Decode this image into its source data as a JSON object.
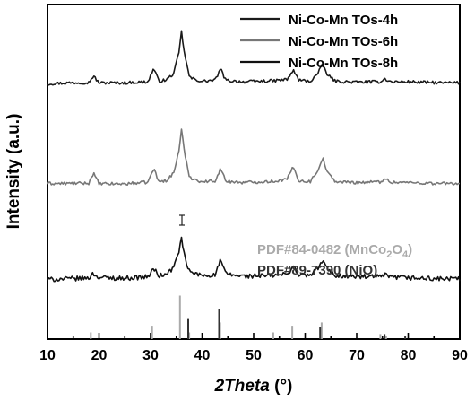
{
  "chart_data": {
    "type": "line",
    "xlabel_italic": "2Theta",
    "xlabel_unit": "(°)",
    "ylabel": "Intensity (a.u.)",
    "xlim": [
      10,
      90
    ],
    "ylim": [
      0,
      100
    ],
    "xticks": [
      10,
      20,
      30,
      40,
      50,
      60,
      70,
      80,
      90
    ],
    "grid": false,
    "legend_position": "top-right",
    "series": [
      {
        "name": "Ni-Co-Mn TOs-4h",
        "color": "#1a1a1a",
        "x": [
          10,
          14,
          18.0,
          18.9,
          20,
          25,
          29.5,
          30.6,
          31.6,
          33,
          34.5,
          35.5,
          36.0,
          36.7,
          37.6,
          40,
          42.5,
          43.6,
          44.6,
          48,
          54,
          56.5,
          57.7,
          58.8,
          61,
          62.4,
          63.4,
          64.4,
          66,
          70,
          74.5,
          75.5,
          76.5,
          80,
          86,
          90
        ],
        "y": [
          76.3,
          76.6,
          76.7,
          78.6,
          76.6,
          76.6,
          76.9,
          80.9,
          77.1,
          77.4,
          79.4,
          85.6,
          91.8,
          84.2,
          78.1,
          77.0,
          77.4,
          80.7,
          77.3,
          76.9,
          77.2,
          77.6,
          80.3,
          77.4,
          77.0,
          79.3,
          82.0,
          78.8,
          77.0,
          76.8,
          76.9,
          77.8,
          76.9,
          76.9,
          76.6,
          76.6
        ]
      },
      {
        "name": "Ni-Co-Mn TOs-6h",
        "color": "#777777",
        "x": [
          10,
          14,
          18.0,
          18.9,
          20,
          25,
          29.5,
          30.6,
          31.6,
          33,
          34.5,
          35.5,
          36.0,
          36.7,
          37.6,
          40,
          42.5,
          43.6,
          44.6,
          48,
          54,
          56.5,
          57.7,
          58.8,
          61,
          62.4,
          63.4,
          64.4,
          66,
          70,
          74.5,
          75.5,
          76.5,
          80,
          86,
          90
        ],
        "y": [
          46.5,
          46.5,
          46.6,
          49.6,
          46.4,
          46.4,
          46.9,
          51.0,
          47.0,
          47.4,
          49.6,
          56.4,
          62.8,
          54.4,
          48.3,
          47.0,
          47.3,
          51.0,
          47.2,
          46.8,
          47.2,
          47.8,
          51.5,
          47.3,
          47.1,
          50.3,
          54.2,
          49.5,
          47.0,
          46.8,
          47.0,
          48.0,
          46.9,
          46.8,
          46.5,
          46.5
        ]
      },
      {
        "name": "Ni-Co-Mn TOs-8h",
        "color": "#111111",
        "x": [
          10,
          14,
          18.0,
          18.9,
          20,
          25,
          29.5,
          30.6,
          31.6,
          33,
          34.5,
          35.5,
          36.0,
          36.7,
          37.6,
          40,
          42.5,
          43.6,
          44.6,
          48,
          54,
          56.5,
          57.7,
          58.8,
          61,
          62.4,
          63.4,
          64.4,
          66,
          70,
          74.5,
          75.5,
          76.5,
          80,
          86,
          90
        ],
        "y": [
          17.8,
          18.0,
          18.3,
          19.6,
          18.4,
          18.2,
          18.6,
          21.1,
          18.9,
          19.3,
          21.4,
          26.4,
          29.8,
          23.8,
          20.0,
          19.0,
          19.2,
          23.6,
          19.4,
          18.8,
          19.0,
          19.4,
          21.8,
          19.2,
          19.0,
          21.2,
          23.4,
          20.7,
          19.0,
          18.6,
          18.6,
          19.1,
          18.5,
          18.3,
          18.0,
          18.0
        ]
      }
    ],
    "references": [
      {
        "name_parts": [
          "PDF#84-0482 (MnCo",
          "2",
          "O",
          "4",
          ")"
        ],
        "color": "#aaaaaa",
        "peaks": [
          {
            "x": 18.4,
            "h": 2
          },
          {
            "x": 30.3,
            "h": 4
          },
          {
            "x": 35.7,
            "h": 13
          },
          {
            "x": 37.5,
            "h": 2
          },
          {
            "x": 43.5,
            "h": 5
          },
          {
            "x": 53.8,
            "h": 2
          },
          {
            "x": 57.5,
            "h": 4
          },
          {
            "x": 63.2,
            "h": 5
          },
          {
            "x": 74.6,
            "h": 1.5
          },
          {
            "x": 75.7,
            "h": 1
          }
        ]
      },
      {
        "name": "PDF#89-7390 (NiO)",
        "color": "#333333",
        "peaks": [
          {
            "x": 37.3,
            "h": 6
          },
          {
            "x": 43.3,
            "h": 9
          },
          {
            "x": 62.9,
            "h": 3.5
          },
          {
            "x": 75.4,
            "h": 1.5
          },
          {
            "x": 79.4,
            "h": 1
          }
        ]
      }
    ]
  }
}
